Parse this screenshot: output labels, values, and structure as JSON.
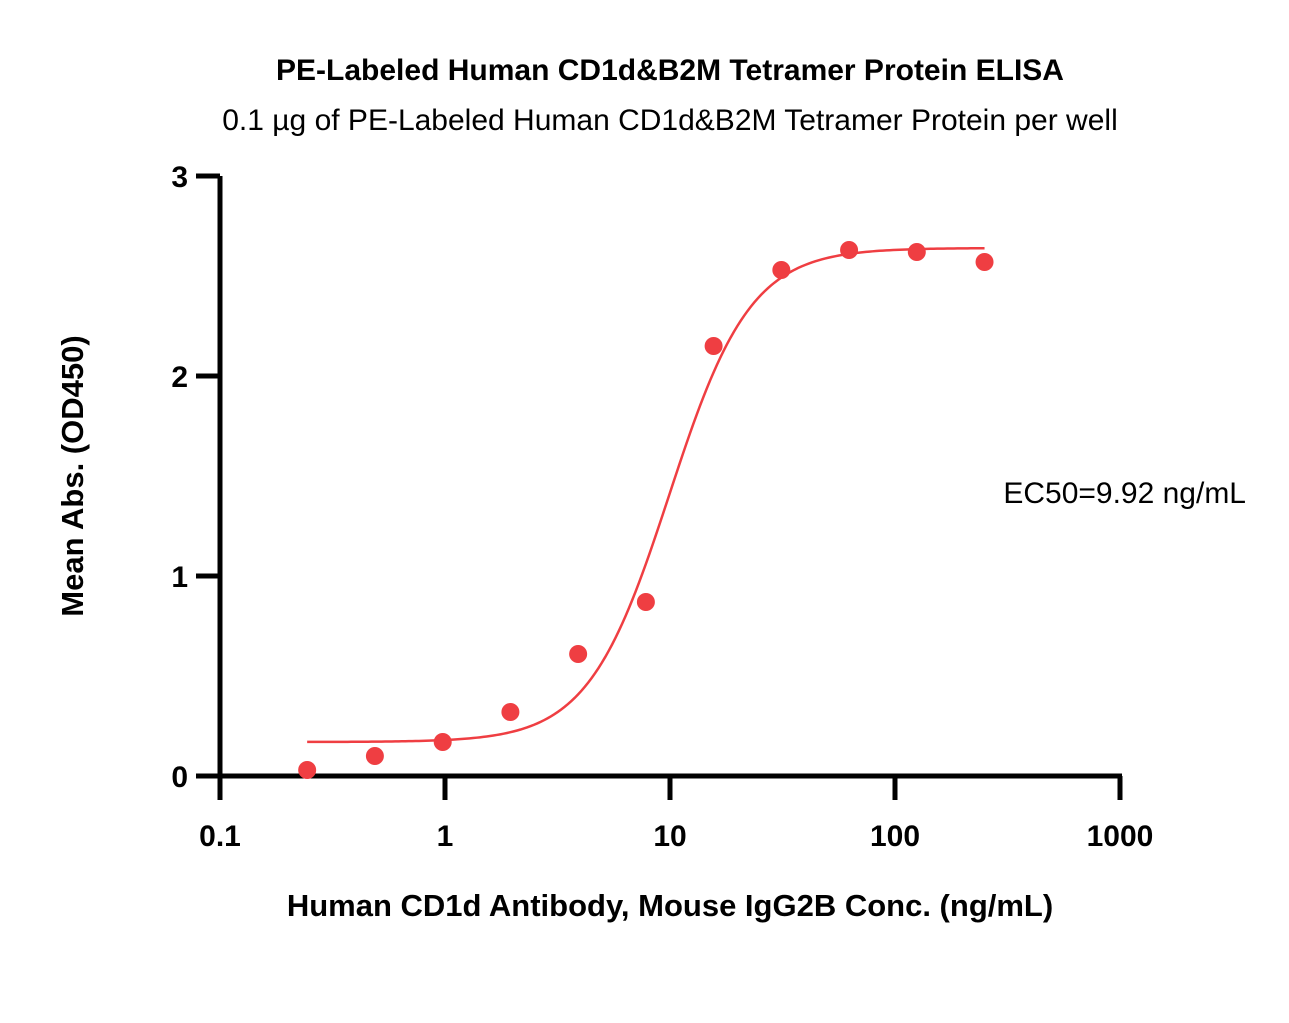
{
  "chart_data": {
    "type": "scatter",
    "title": "PE-Labeled Human CD1d&B2M Tetramer Protein ELISA",
    "subtitle": "0.1 µg of PE-Labeled Human CD1d&B2M Tetramer Protein per well",
    "xlabel": "Human CD1d Antibody, Mouse IgG2B Conc. (ng/mL)",
    "ylabel": "Mean Abs. (OD450)",
    "xscale": "log",
    "xlim": [
      0.1,
      1000
    ],
    "ylim": [
      0,
      3
    ],
    "xticks": [
      "0.1",
      "1",
      "10",
      "100",
      "1000"
    ],
    "xtick_values": [
      0.1,
      1,
      10,
      100,
      1000
    ],
    "yticks": [
      "0",
      "1",
      "2",
      "3"
    ],
    "ytick_values": [
      0,
      1,
      2,
      3
    ],
    "grid": false,
    "series": [
      {
        "x": [
          0.244,
          0.488,
          0.977,
          1.953,
          3.906,
          7.813,
          15.625,
          31.25,
          62.5,
          125,
          250
        ],
        "y": [
          0.03,
          0.1,
          0.17,
          0.32,
          0.61,
          0.87,
          2.15,
          2.53,
          2.63,
          2.62,
          2.57
        ],
        "marker": "circle",
        "color": "#ef3e42"
      }
    ],
    "fit_curve": {
      "type": "4PL",
      "bottom": 0.17,
      "top": 2.64,
      "ec50": 9.92,
      "hill": 2.4,
      "x_range": [
        0.244,
        250
      ],
      "color": "#ef3e42"
    },
    "annotation": "EC50=9.92 ng/mL"
  }
}
